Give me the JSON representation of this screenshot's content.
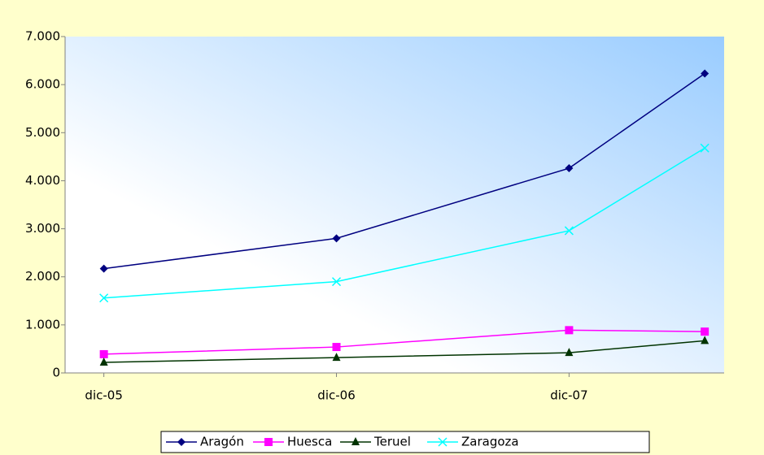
{
  "chart_data": {
    "type": "line",
    "x": [
      "2005-12",
      "2006-12",
      "2007-12",
      "2008-07"
    ],
    "xlim": [
      "2005-10",
      "2008-08"
    ],
    "xticks": [
      {
        "value": "2005-12",
        "label": "dic-05"
      },
      {
        "value": "2006-12",
        "label": "dic-06"
      },
      {
        "value": "2007-12",
        "label": "dic-07"
      }
    ],
    "ylim": [
      0,
      7000
    ],
    "yticks": [
      0,
      {
        "value": 1000,
        "label": "1.000"
      },
      {
        "value": 2000,
        "label": "2.000"
      },
      {
        "value": 3000,
        "label": "3.000"
      },
      {
        "value": 4000,
        "label": "4.000"
      },
      {
        "value": 5000,
        "label": "5.000"
      },
      {
        "value": 6000,
        "label": "6.000"
      },
      {
        "value": 7000,
        "label": "7.000"
      }
    ],
    "grid": false,
    "legend": "bottom",
    "series": [
      {
        "name": "Aragón",
        "color": "#000080",
        "marker": "diamond",
        "values": [
          2170,
          2800,
          4260,
          6230
        ]
      },
      {
        "name": "Huesca",
        "color": "#ff00ff",
        "marker": "square",
        "values": [
          390,
          540,
          890,
          860
        ]
      },
      {
        "name": "Teruel",
        "color": "#003300",
        "marker": "triangle",
        "values": [
          220,
          320,
          420,
          670
        ]
      },
      {
        "name": "Zaragoza",
        "color": "#00ffff",
        "marker": "x",
        "values": [
          1560,
          1900,
          2960,
          4680
        ]
      }
    ]
  }
}
